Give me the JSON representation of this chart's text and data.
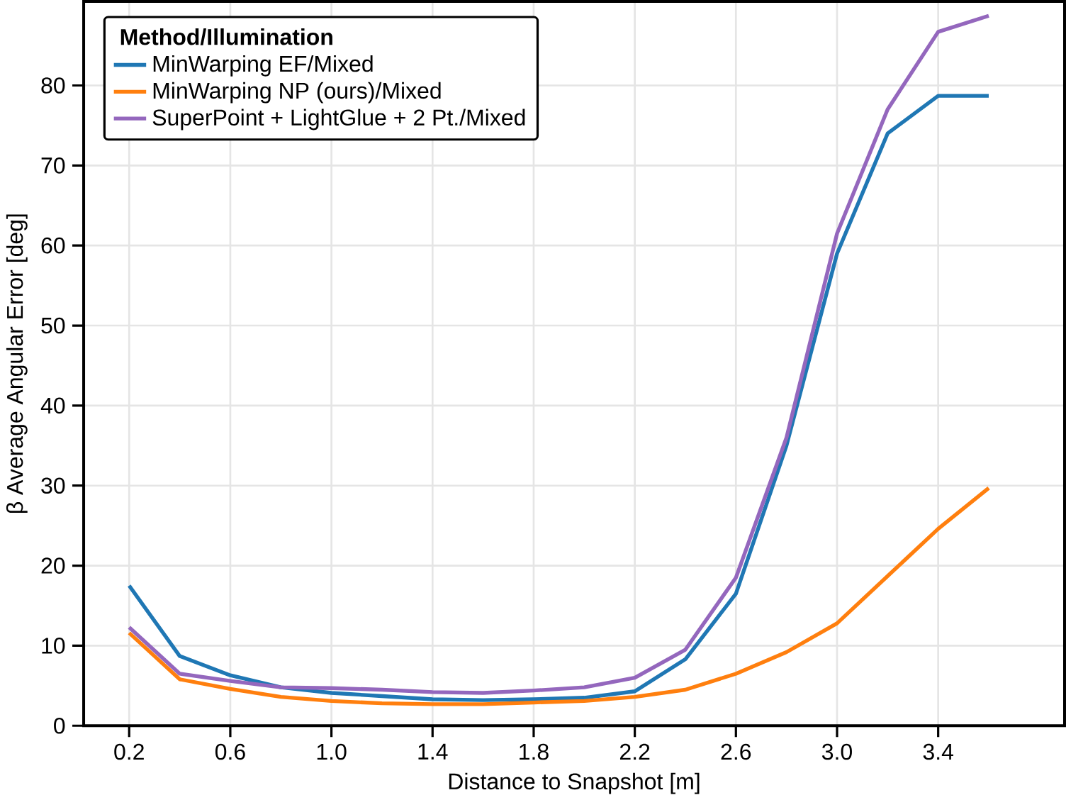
{
  "chart_data": {
    "type": "line",
    "xlabel": "Distance to Snapshot [m]",
    "ylabel": "β Average Angular Error [deg]",
    "legend_title": "**Method/Illumination**",
    "x": [
      0.2,
      0.4,
      0.6,
      0.8,
      1.0,
      1.2,
      1.4,
      1.6,
      1.8,
      2.0,
      2.2,
      2.4,
      2.6,
      2.8,
      3.0,
      3.2,
      3.4,
      3.6
    ],
    "series": [
      {
        "name": "MinWarping EF/Mixed",
        "color": "#1f77b4",
        "values": [
          17.5,
          8.7,
          6.3,
          4.8,
          4.1,
          3.7,
          3.3,
          3.2,
          3.3,
          3.5,
          4.3,
          8.3,
          16.5,
          35,
          59,
          74,
          78.7,
          78.7
        ]
      },
      {
        "name": "MinWarping NP (ours)/Mixed",
        "color": "#ff7f0e",
        "values": [
          11.6,
          5.8,
          4.6,
          3.6,
          3.1,
          2.8,
          2.7,
          2.7,
          2.9,
          3.1,
          3.6,
          4.5,
          6.5,
          9.2,
          12.8,
          18.7,
          24.6,
          29.7
        ]
      },
      {
        "name": "SuperPoint + LightGlue + 2 Pt./Mixed",
        "color": "#9467bd",
        "values": [
          12.3,
          6.5,
          5.6,
          4.8,
          4.7,
          4.5,
          4.2,
          4.1,
          4.4,
          4.8,
          6.0,
          9.5,
          18.5,
          36,
          61.5,
          77,
          86.7,
          88.7
        ]
      }
    ],
    "xlim": [
      0.02,
      3.9
    ],
    "ylim": [
      0,
      90.5
    ],
    "xticks": [
      0.2,
      0.6,
      {
        "value": 1.0,
        "label": "1.0"
      },
      1.4,
      1.8,
      2.2,
      2.6,
      {
        "value": 3.0,
        "label": "3.0"
      },
      3.4
    ],
    "yticks": [
      0,
      10,
      20,
      30,
      40,
      50,
      60,
      70,
      80
    ],
    "grid": true,
    "legend": "top left",
    "marker": "none",
    "line_style": "solid"
  }
}
